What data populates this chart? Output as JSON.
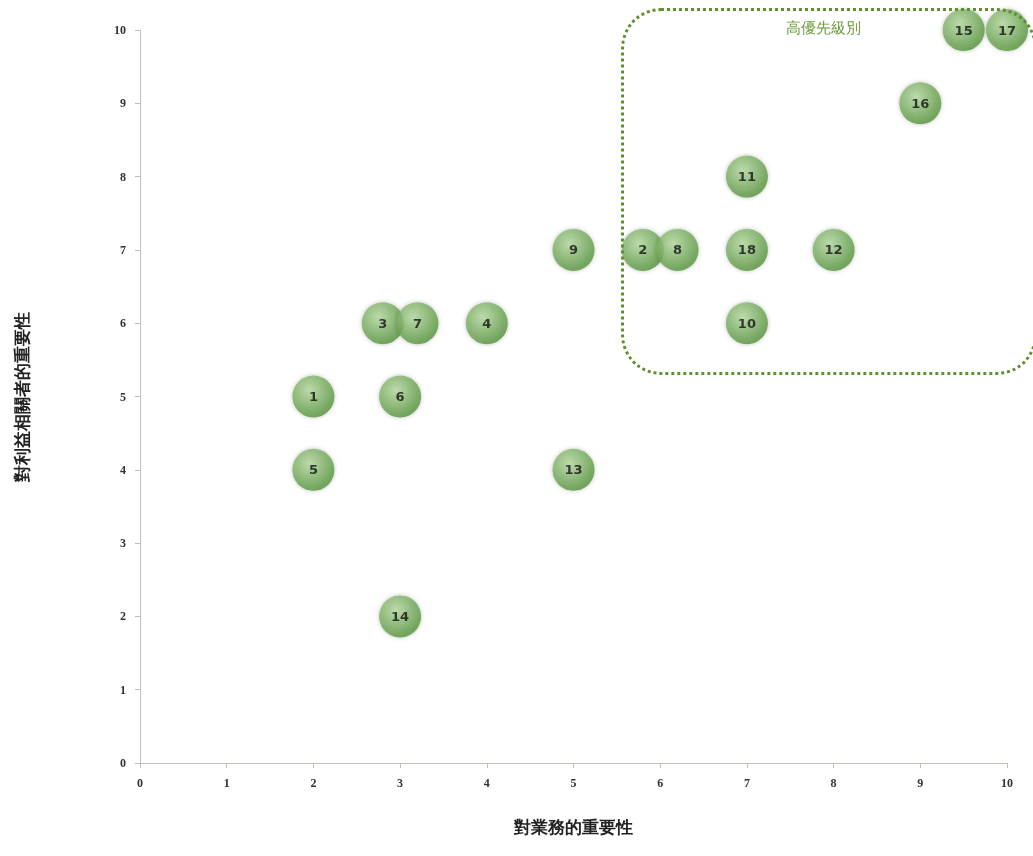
{
  "chart_data": {
    "type": "scatter",
    "xlabel": "對業務的重要性",
    "ylabel": "對利益相關者的重要性",
    "annotations": [
      "高優先級別",
      {
        "text": "1",
        "x": 2,
        "y": 5
      },
      {
        "text": "5",
        "x": 2,
        "y": 4
      },
      {
        "text": "3",
        "x": 2.8,
        "y": 6
      },
      {
        "text": "7",
        "x": 3.2,
        "y": 6
      },
      {
        "text": "6",
        "x": 3,
        "y": 5
      },
      {
        "text": "14",
        "x": 3,
        "y": 2
      },
      {
        "text": "4",
        "x": 4,
        "y": 6
      },
      {
        "text": "9",
        "x": 5,
        "y": 7
      },
      {
        "text": "13",
        "x": 5,
        "y": 4
      },
      {
        "text": "2",
        "x": 5.8,
        "y": 7
      },
      {
        "text": "8",
        "x": 6.2,
        "y": 7
      },
      {
        "text": "11",
        "x": 7,
        "y": 8
      },
      {
        "text": "18",
        "x": 7,
        "y": 7
      },
      {
        "text": "10",
        "x": 7,
        "y": 6
      },
      {
        "text": "12",
        "x": 8,
        "y": 7
      },
      {
        "text": "16",
        "x": 9,
        "y": 9
      },
      {
        "text": "15",
        "x": 9.5,
        "y": 10
      },
      {
        "text": "17",
        "x": 10,
        "y": 10
      }
    ],
    "x": [
      2,
      2,
      2.8,
      3.2,
      3,
      3,
      4,
      5,
      5,
      5.8,
      6.2,
      7,
      7,
      7,
      8,
      9,
      9.5,
      10
    ],
    "values": [
      5,
      4,
      6,
      6,
      5,
      2,
      6,
      7,
      4,
      7,
      7,
      8,
      7,
      6,
      7,
      9,
      10,
      10
    ],
    "color": "#4f8f35",
    "marker": "circle",
    "xlim": [
      0,
      10
    ],
    "xticks": [
      0,
      1,
      2,
      3,
      4,
      5,
      6,
      7,
      8,
      9,
      10
    ],
    "ylim": [
      0,
      10
    ],
    "yticks": [
      0,
      1,
      2,
      3,
      4,
      5,
      6,
      7,
      8,
      9,
      10
    ]
  }
}
